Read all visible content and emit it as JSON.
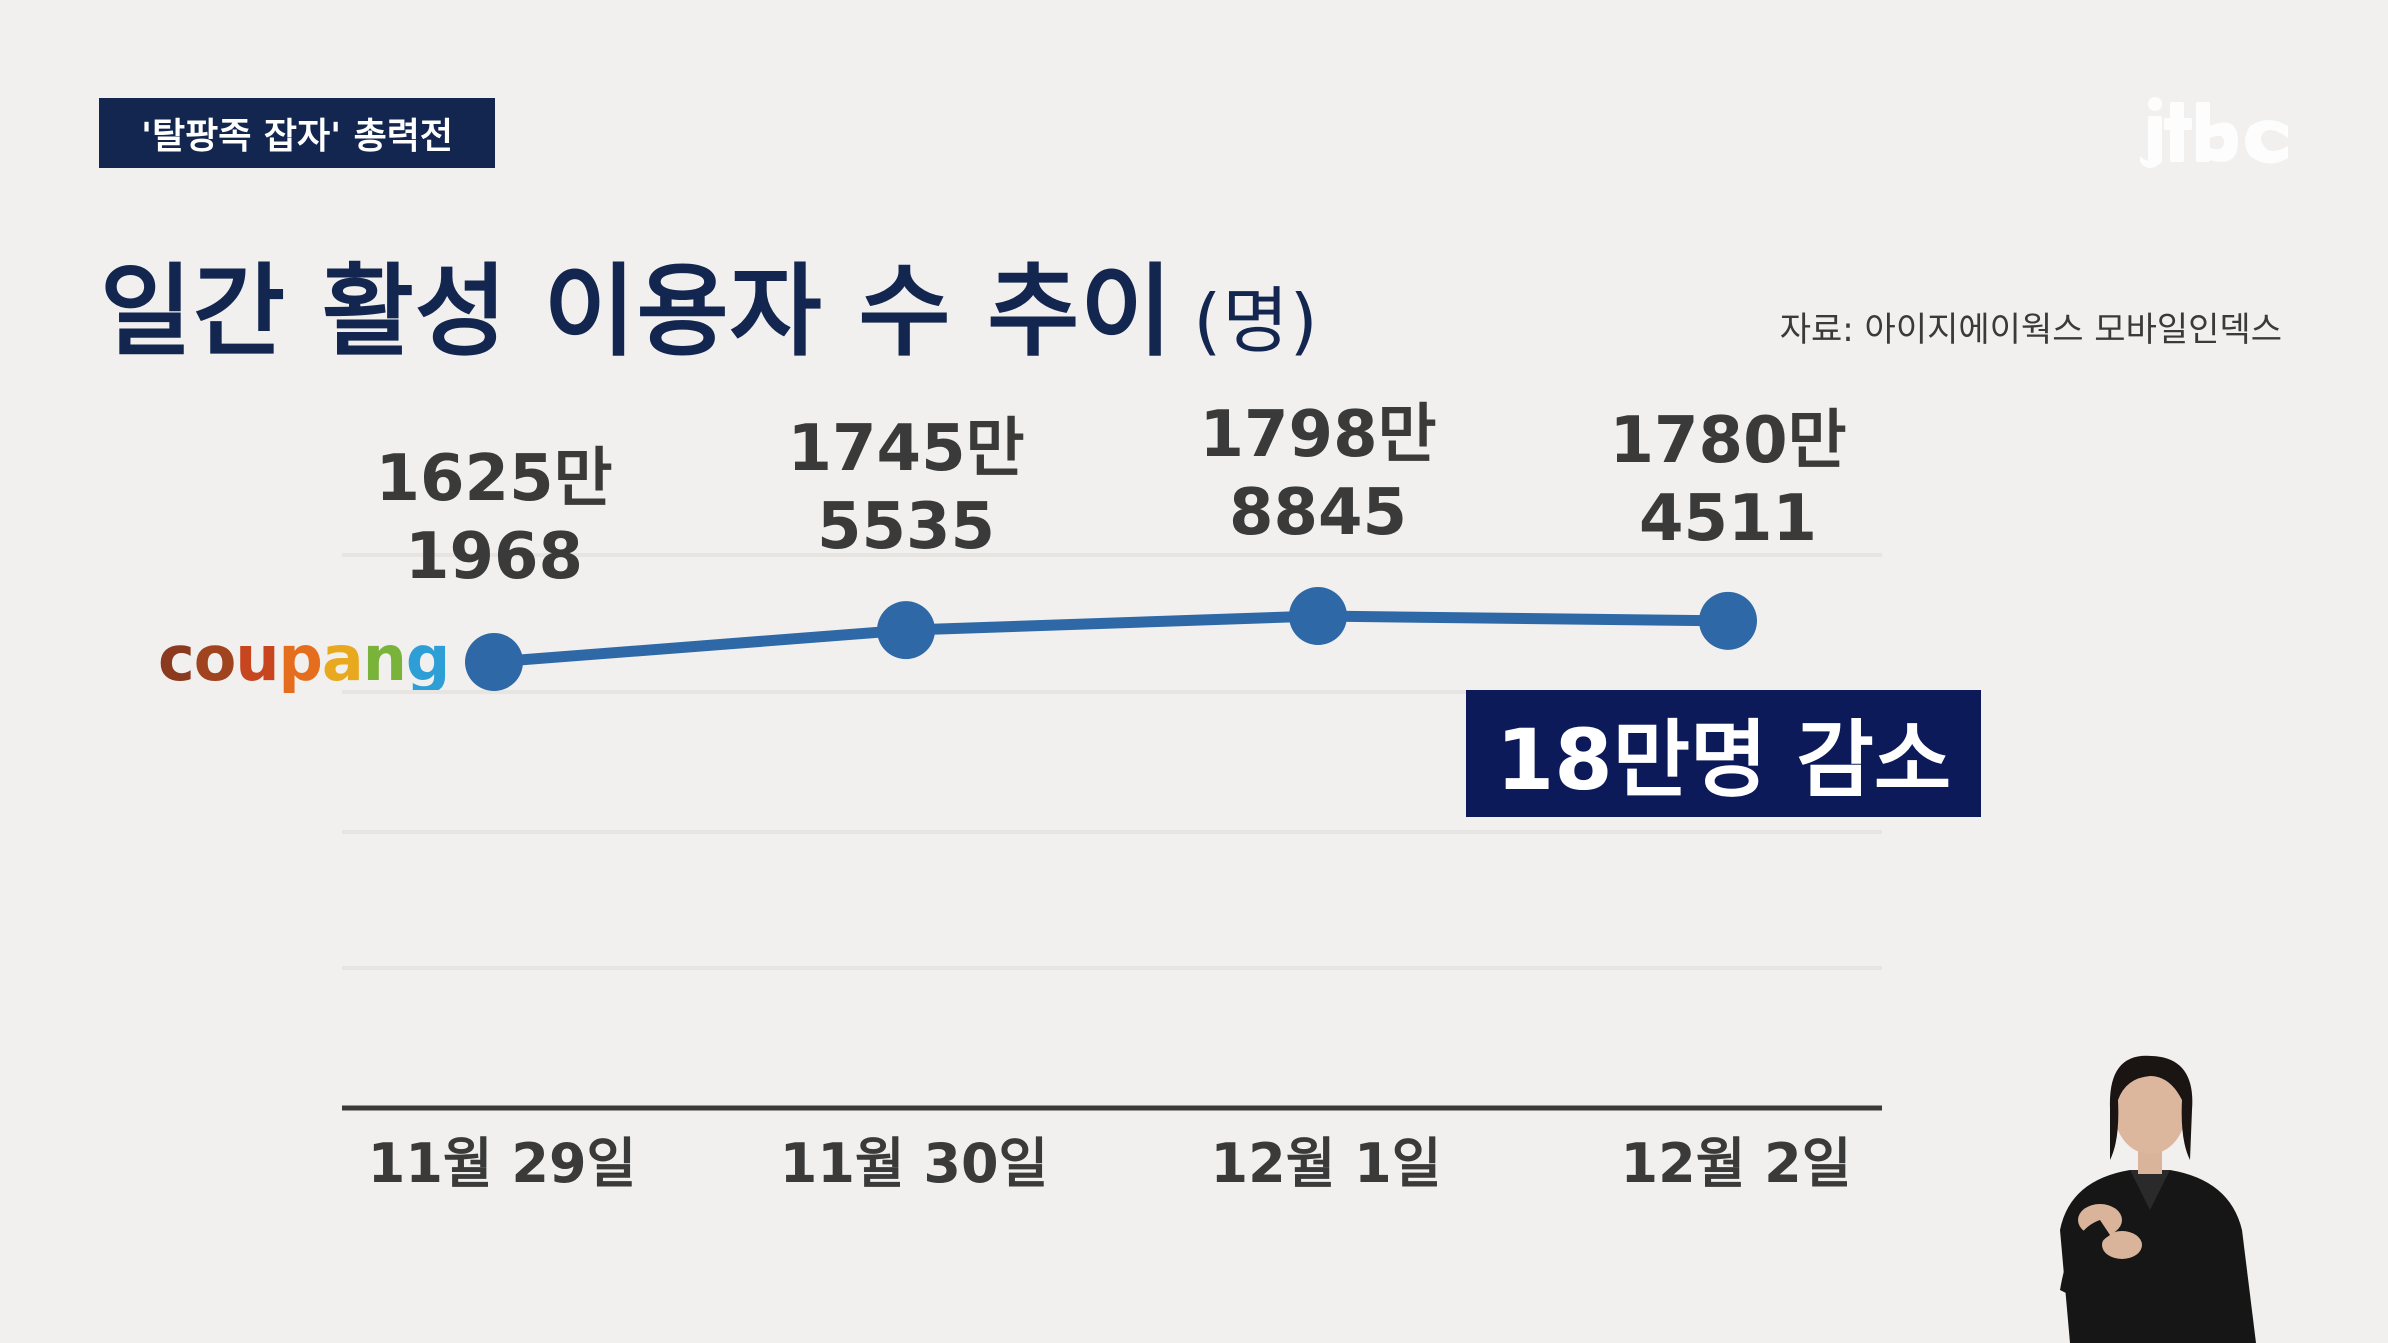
{
  "tag": "'탈팡족 잡자' 총력전",
  "logo_text": "jtbc",
  "title": "일간 활성 이용자 수 추이",
  "title_unit": "(명)",
  "source": "자료: 아이지에이웍스 모바일인덱스",
  "brand": {
    "letters": [
      "c",
      "o",
      "u",
      "p",
      "a",
      "n",
      "g"
    ],
    "colors": [
      "#8b3a1f",
      "#a0431f",
      "#c8461f",
      "#e46e1e",
      "#e9a91f",
      "#7ab33a",
      "#2e9fd6"
    ]
  },
  "callout": "18만명 감소",
  "colors": {
    "line": "#2f68a6",
    "axis": "#3a3a3a",
    "grid": "#e6e5e2",
    "label": "#3a3a3a"
  },
  "chart_data": {
    "type": "line",
    "title": "일간 활성 이용자 수 추이",
    "unit": "(명)",
    "categories": [
      "11월 29일",
      "11월 30일",
      "12월 1일",
      "12월 2일"
    ],
    "series": [
      {
        "name": "coupang",
        "values": [
          16251968,
          17455535,
          17988845,
          17804511
        ],
        "labels": [
          [
            "1625만",
            "1968"
          ],
          [
            "1745만",
            "5535"
          ],
          [
            "1798만",
            "8845"
          ],
          [
            "1780만",
            "4511"
          ]
        ]
      }
    ],
    "grid": true
  }
}
